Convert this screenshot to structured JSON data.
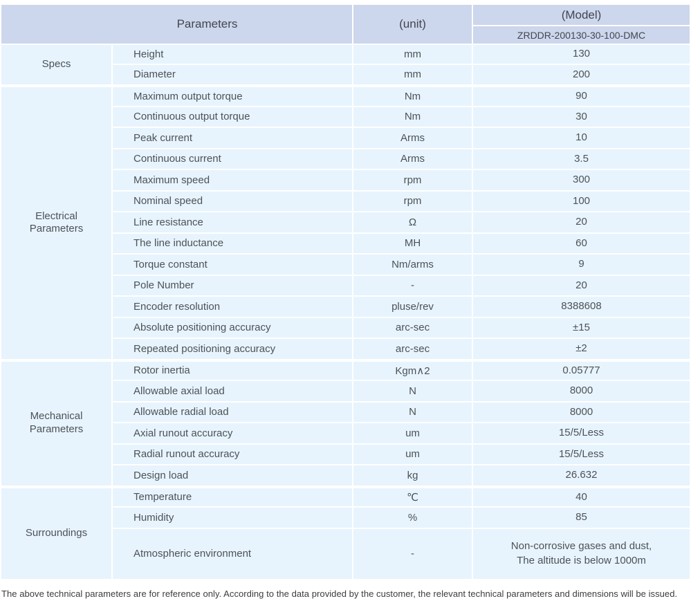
{
  "colors": {
    "header_bg": "#ccd6ec",
    "row_bg": "#e7f4fd",
    "separator": "#ffffff",
    "body_text": "#4d5157",
    "header_text": "#43464e"
  },
  "header": {
    "parameters_label": "Parameters",
    "unit_label": "(unit)",
    "model_label": "(Model)",
    "model_code": "ZRDDR-200130-30-100-DMC"
  },
  "sections": [
    {
      "id": "specs",
      "name": "Specs",
      "rows": [
        {
          "param": "Height",
          "unit": "mm",
          "value": "130"
        },
        {
          "param": "Diameter",
          "unit": "mm",
          "value": "200"
        }
      ]
    },
    {
      "id": "electrical-parameters",
      "name": "Electrical\nParameters",
      "rows": [
        {
          "param": "Maximum output torque",
          "unit": "Nm",
          "value": "90"
        },
        {
          "param": "Continuous output torque",
          "unit": "Nm",
          "value": "30"
        },
        {
          "param": "Peak current",
          "unit": "Arms",
          "value": "10"
        },
        {
          "param": "Continuous current",
          "unit": "Arms",
          "value": "3.5"
        },
        {
          "param": "Maximum speed",
          "unit": "rpm",
          "value": "300"
        },
        {
          "param": "Nominal speed",
          "unit": "rpm",
          "value": "100"
        },
        {
          "param": "Line resistance",
          "unit": "Ω",
          "value": "20"
        },
        {
          "param": "The line inductance",
          "unit": "MH",
          "value": "60"
        },
        {
          "param": "Torque constant",
          "unit": "Nm/arms",
          "value": "9"
        },
        {
          "param": "Pole Number",
          "unit": "-",
          "value": "20"
        },
        {
          "param": "Encoder resolution",
          "unit": "pluse/rev",
          "value": "8388608"
        },
        {
          "param": "Absolute positioning accuracy",
          "unit": "arc-sec",
          "value": "±15"
        },
        {
          "param": "Repeated positioning accuracy",
          "unit": "arc-sec",
          "value": "±2"
        }
      ]
    },
    {
      "id": "mechanical-parameters",
      "name": "Mechanical\nParameters",
      "rows": [
        {
          "param": "Rotor inertia",
          "unit": "Kgm∧2",
          "value": "0.05777"
        },
        {
          "param": "Allowable axial load",
          "unit": "N",
          "value": "8000"
        },
        {
          "param": "Allowable radial load",
          "unit": "N",
          "value": "8000"
        },
        {
          "param": "Axial runout accuracy",
          "unit": "um",
          "value": "15/5/Less"
        },
        {
          "param": "Radial runout accuracy",
          "unit": "um",
          "value": "15/5/Less"
        },
        {
          "param": "Design load",
          "unit": "kg",
          "value": "26.632"
        }
      ]
    },
    {
      "id": "surroundings",
      "name": "Surroundings",
      "rows": [
        {
          "param": "Temperature",
          "unit": "℃",
          "value": "40"
        },
        {
          "param": "Humidity",
          "unit": "%",
          "value": "85"
        },
        {
          "param": "Atmospheric environment",
          "unit": "-",
          "value": "Non-corrosive gases and dust,\nThe altitude is below 1000m",
          "tall": true
        }
      ]
    }
  ],
  "footnote": "The above technical parameters are for reference only. According to the data provided by the customer, the relevant technical parameters and dimensions will be issued."
}
